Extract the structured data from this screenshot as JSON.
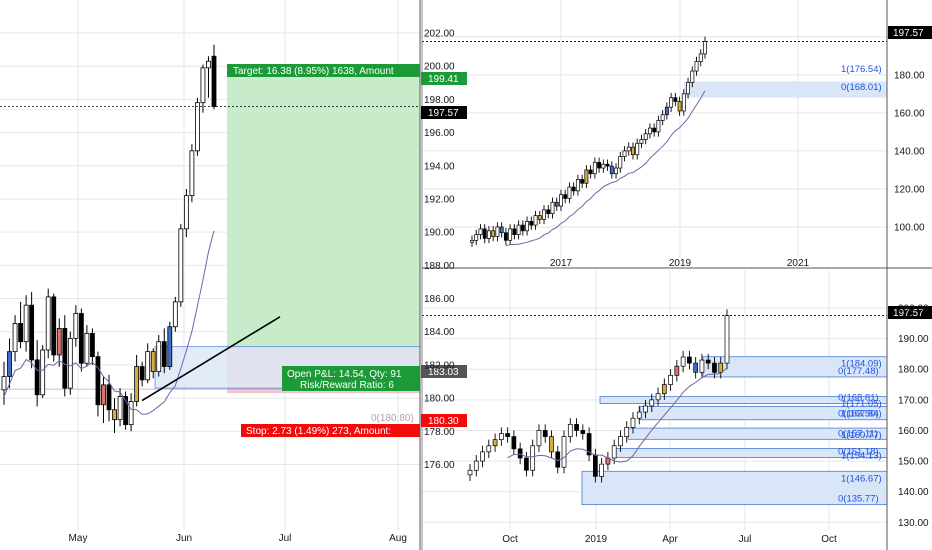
{
  "colors": {
    "up": "#ffffff",
    "down": "#000000",
    "marked": "#d4b03a",
    "marked_red": "#e07070",
    "marked_blue": "#3d6fc9",
    "ma": "#7b5ea7",
    "target_fill": "#c8ecc9",
    "stop_fill": "#f4c5ca",
    "target_box": "#1b9a37",
    "stop_box": "#f20b0b",
    "fib_fill": "#d9e6f7",
    "fib_line": "#4a7ad6",
    "price_box": "#000000",
    "grid": "#e6e6e6"
  },
  "left_chart": {
    "y_ticks": [
      "176.00",
      "178.00",
      "180.00",
      "182.00",
      "184.00",
      "186.00",
      "188.00",
      "190.00",
      "192.00",
      "194.00",
      "196.00",
      "198.00",
      "200.00",
      "202.00"
    ],
    "x_ticks": [
      "May",
      "Jun",
      "Jul",
      "Aug"
    ],
    "target_label": "Target: 16.38 (8.95%) 1638, Amount",
    "target_price": "199.41",
    "last_price": "197.57",
    "pnl_label": "Open P&L: 14.54, Qty: 91",
    "rr_label": "Risk/Reward Ratio: 6",
    "entry_price": "183.03",
    "stop_level_label": "0(180.80)",
    "stop_price": "180.30",
    "stop_label": "Stop: 2.73 (1.49%) 273, Amount:"
  },
  "top_right_chart": {
    "y_ticks": [
      "100.00",
      "120.00",
      "140.00",
      "160.00",
      "180.00",
      "200.00"
    ],
    "x_ticks": [
      "2017",
      "2019",
      "2021"
    ],
    "last_price": "197.57",
    "levels": [
      "1(176.54)",
      "0(168.01)"
    ]
  },
  "bottom_right_chart": {
    "y_ticks": [
      "130.00",
      "140.00",
      "150.00",
      "160.00",
      "170.00",
      "180.00",
      "190.00",
      "200.00"
    ],
    "x_ticks": [
      "Oct",
      "2019",
      "Apr",
      "Jul",
      "Oct"
    ],
    "last_price": "197.57",
    "levels": [
      "1(184.09)",
      "0(177.48)",
      "1(171.05)",
      "0(168.81)",
      "1(167.84)",
      "0(163.50)",
      "1(160.77)",
      "0(157.11)",
      "1(154.13)",
      "0(151.18)",
      "1(146.67)",
      "0(135.77)"
    ]
  },
  "chart_data": [
    {
      "type": "candlestick",
      "title": "",
      "x_range": [
        "Apr",
        "Aug"
      ],
      "ylim": [
        174.5,
        203.5
      ],
      "moving_average": true,
      "long_position": {
        "entry": 183.03,
        "target": 199.41,
        "stop": 180.3
      },
      "trendline": [
        [
          0,
          179.9
        ],
        [
          1,
          184.9
        ]
      ],
      "candles": [
        {
          "o": 180.5,
          "h": 182.2,
          "l": 179.6,
          "c": 181.3
        },
        {
          "o": 181.3,
          "h": 183.6,
          "l": 180.6,
          "c": 182.8
        },
        {
          "o": 182.8,
          "h": 185.0,
          "l": 182.2,
          "c": 184.5
        },
        {
          "o": 184.5,
          "h": 185.8,
          "l": 183.0,
          "c": 183.4
        },
        {
          "o": 183.4,
          "h": 186.2,
          "l": 182.8,
          "c": 185.6
        },
        {
          "o": 185.6,
          "h": 186.4,
          "l": 181.8,
          "c": 182.3
        },
        {
          "o": 182.3,
          "h": 183.5,
          "l": 179.5,
          "c": 180.2
        },
        {
          "o": 180.2,
          "h": 183.2,
          "l": 180.0,
          "c": 182.9
        },
        {
          "o": 182.9,
          "h": 186.6,
          "l": 182.4,
          "c": 186.1
        },
        {
          "o": 186.1,
          "h": 186.3,
          "l": 182.2,
          "c": 182.6
        },
        {
          "o": 182.6,
          "h": 184.8,
          "l": 181.9,
          "c": 184.2
        },
        {
          "o": 184.2,
          "h": 185.0,
          "l": 180.1,
          "c": 180.6
        },
        {
          "o": 180.6,
          "h": 184.0,
          "l": 180.2,
          "c": 183.6
        },
        {
          "o": 183.6,
          "h": 185.6,
          "l": 183.1,
          "c": 185.1
        },
        {
          "o": 185.1,
          "h": 185.4,
          "l": 181.6,
          "c": 182.1
        },
        {
          "o": 182.1,
          "h": 184.4,
          "l": 181.9,
          "c": 183.9
        },
        {
          "o": 183.9,
          "h": 184.2,
          "l": 182.0,
          "c": 182.5
        },
        {
          "o": 182.5,
          "h": 182.8,
          "l": 178.9,
          "c": 179.6
        },
        {
          "o": 179.6,
          "h": 181.3,
          "l": 178.5,
          "c": 180.8
        },
        {
          "o": 180.8,
          "h": 181.4,
          "l": 178.6,
          "c": 179.3
        },
        {
          "o": 179.3,
          "h": 180.0,
          "l": 177.9,
          "c": 178.7
        },
        {
          "o": 178.7,
          "h": 180.6,
          "l": 178.3,
          "c": 180.1
        },
        {
          "o": 180.1,
          "h": 180.4,
          "l": 178.1,
          "c": 178.4
        },
        {
          "o": 178.4,
          "h": 180.3,
          "l": 178.0,
          "c": 179.8
        },
        {
          "o": 179.8,
          "h": 182.6,
          "l": 179.5,
          "c": 181.9
        },
        {
          "o": 181.9,
          "h": 182.2,
          "l": 180.7,
          "c": 181.1
        },
        {
          "o": 181.1,
          "h": 183.3,
          "l": 180.9,
          "c": 182.8
        },
        {
          "o": 182.8,
          "h": 183.0,
          "l": 181.2,
          "c": 181.6
        },
        {
          "o": 181.6,
          "h": 183.8,
          "l": 181.3,
          "c": 183.4
        },
        {
          "o": 183.4,
          "h": 184.2,
          "l": 181.5,
          "c": 181.9
        },
        {
          "o": 181.9,
          "h": 184.6,
          "l": 181.7,
          "c": 184.3
        },
        {
          "o": 184.3,
          "h": 186.1,
          "l": 184.0,
          "c": 185.8
        },
        {
          "o": 185.8,
          "h": 190.5,
          "l": 185.5,
          "c": 190.2
        },
        {
          "o": 190.2,
          "h": 192.6,
          "l": 189.7,
          "c": 192.2
        },
        {
          "o": 192.2,
          "h": 195.3,
          "l": 191.8,
          "c": 194.9
        },
        {
          "o": 194.9,
          "h": 198.1,
          "l": 194.6,
          "c": 197.8
        },
        {
          "o": 197.8,
          "h": 200.1,
          "l": 197.2,
          "c": 199.9
        },
        {
          "o": 199.9,
          "h": 200.6,
          "l": 198.1,
          "c": 200.3
        },
        {
          "o": 200.6,
          "h": 201.3,
          "l": 197.4,
          "c": 197.57
        }
      ]
    },
    {
      "type": "candlestick",
      "title": "",
      "x_ticks": [
        "2017",
        "2019",
        "2021"
      ],
      "ylim": [
        88,
        205
      ],
      "moving_average": true,
      "levels": [
        176.54,
        168.01
      ],
      "last_price": 197.57,
      "closes": [
        93,
        96,
        99,
        94,
        98,
        95,
        100,
        97,
        93,
        99,
        96,
        101,
        98,
        103,
        101,
        106,
        104,
        109,
        107,
        113,
        111,
        117,
        115,
        121,
        119,
        125,
        123,
        130,
        128,
        134,
        131,
        133,
        132,
        128,
        131,
        137,
        140,
        142,
        138,
        144,
        146,
        149,
        152,
        150,
        156,
        159,
        163,
        168,
        166,
        161,
        170,
        176,
        182,
        187,
        191,
        197.57
      ]
    },
    {
      "type": "candlestick",
      "title": "",
      "x_ticks": [
        "Oct",
        "2019",
        "Apr",
        "Jul",
        "Oct"
      ],
      "ylim": [
        128,
        206
      ],
      "moving_average": true,
      "levels": [
        184.09,
        177.48,
        171.05,
        168.81,
        167.84,
        163.5,
        160.77,
        157.11,
        154.13,
        151.18,
        146.67,
        135.77
      ],
      "last_price": 197.57,
      "closes": [
        147,
        150,
        153,
        155,
        157,
        159,
        158,
        154,
        151,
        147,
        155,
        160,
        158,
        153,
        148,
        158,
        162,
        160,
        159,
        152,
        145,
        149,
        151,
        155,
        158,
        161,
        164,
        166,
        168,
        170,
        172,
        175,
        178,
        181,
        184,
        182,
        179,
        183,
        182,
        179,
        182,
        197.57
      ]
    }
  ]
}
